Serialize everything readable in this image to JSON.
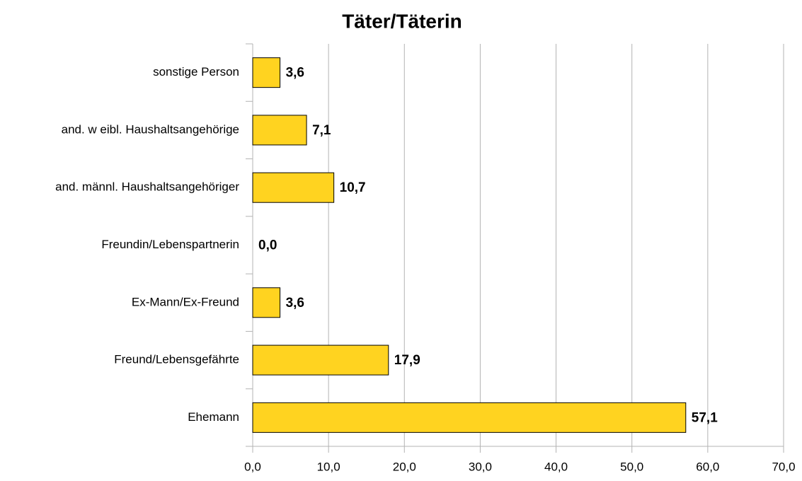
{
  "chart_data": {
    "type": "barh",
    "title": "Täter/Täterin",
    "categories": [
      "sonstige Person",
      "and. w eibl. Haushaltsangehörige",
      "and. männl. Haushaltsangehöriger",
      "Freundin/Lebenspartnerin",
      "Ex-Mann/Ex-Freund",
      "Freund/Lebensgefährte",
      "Ehemann"
    ],
    "values": [
      3.6,
      7.1,
      10.7,
      0.0,
      3.6,
      17.9,
      57.1
    ],
    "value_labels": [
      "3,6",
      "7,1",
      "10,7",
      "0,0",
      "3,6",
      "17,9",
      "57,1"
    ],
    "color": "#ffd320",
    "xlim": [
      0,
      70
    ],
    "xticks": [
      {
        "value": 0,
        "label": "0,0"
      },
      {
        "value": 10,
        "label": "10,0"
      },
      {
        "value": 20,
        "label": "20,0"
      },
      {
        "value": 30,
        "label": "30,0"
      },
      {
        "value": 40,
        "label": "40,0"
      },
      {
        "value": 50,
        "label": "50,0"
      },
      {
        "value": 60,
        "label": "60,0"
      },
      {
        "value": 70,
        "label": "70,0"
      }
    ],
    "grid": true
  }
}
